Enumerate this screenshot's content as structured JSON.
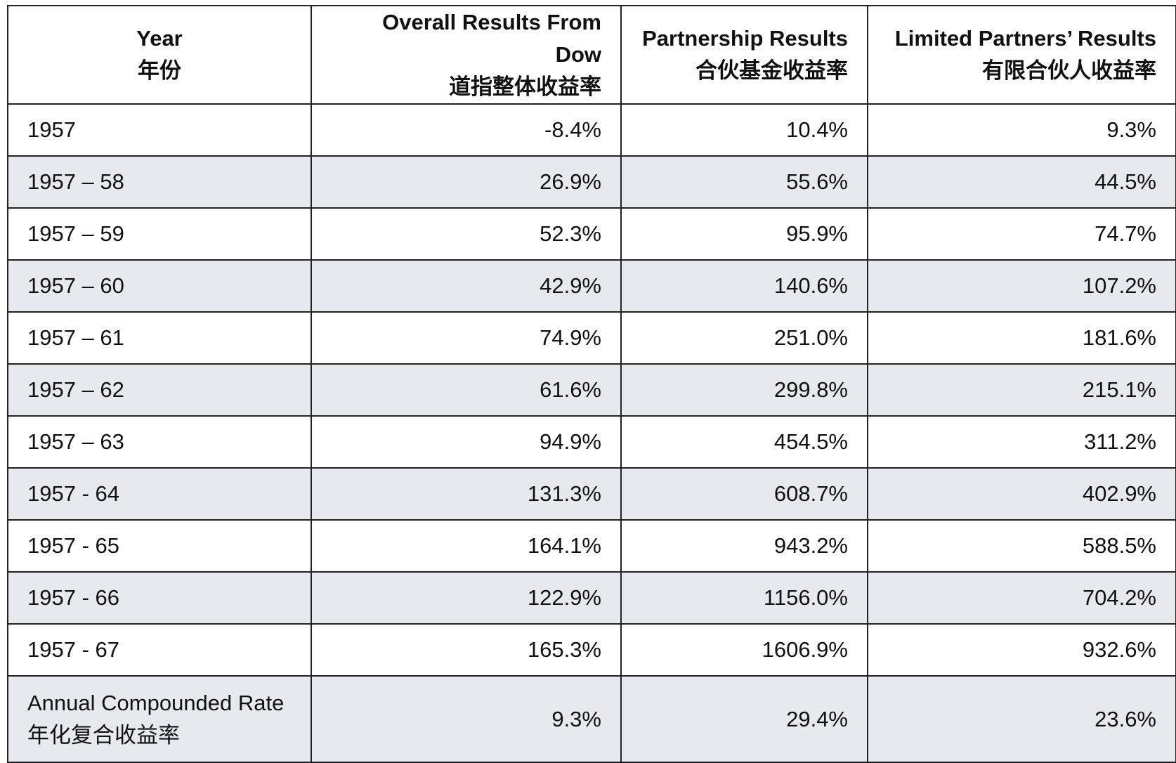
{
  "chart_data": {
    "type": "table",
    "columns": [
      {
        "en": "Year",
        "zh": "年份"
      },
      {
        "en": "Overall Results From Dow",
        "zh": "道指整体收益率"
      },
      {
        "en": "Partnership Results",
        "zh": "合伙基金收益率"
      },
      {
        "en": "Limited Partners’ Results",
        "zh": "有限合伙人收益率"
      }
    ],
    "rows": [
      {
        "period": "1957",
        "dow": "-8.4%",
        "partnership": "10.4%",
        "limited": "9.3%"
      },
      {
        "period": "1957 – 58",
        "dow": "26.9%",
        "partnership": "55.6%",
        "limited": "44.5%"
      },
      {
        "period": "1957 – 59",
        "dow": "52.3%",
        "partnership": "95.9%",
        "limited": "74.7%"
      },
      {
        "period": "1957 – 60",
        "dow": "42.9%",
        "partnership": "140.6%",
        "limited": "107.2%"
      },
      {
        "period": "1957 – 61",
        "dow": "74.9%",
        "partnership": "251.0%",
        "limited": "181.6%"
      },
      {
        "period": "1957 – 62",
        "dow": "61.6%",
        "partnership": "299.8%",
        "limited": "215.1%"
      },
      {
        "period": "1957 – 63",
        "dow": "94.9%",
        "partnership": "454.5%",
        "limited": "311.2%"
      },
      {
        "period": "1957 - 64",
        "dow": "131.3%",
        "partnership": "608.7%",
        "limited": "402.9%"
      },
      {
        "period": "1957 - 65",
        "dow": "164.1%",
        "partnership": "943.2%",
        "limited": "588.5%"
      },
      {
        "period": "1957 - 66",
        "dow": "122.9%",
        "partnership": "1156.0%",
        "limited": "704.2%"
      },
      {
        "period": "1957 - 67",
        "dow": "165.3%",
        "partnership": "1606.9%",
        "limited": "932.6%"
      }
    ],
    "summary": {
      "label_en": "Annual Compounded Rate",
      "label_zh": "年化复合收益率",
      "dow": "9.3%",
      "partnership": "29.4%",
      "limited": "23.6%"
    }
  },
  "colors": {
    "row_shade": "#e6e9ee",
    "border": "#222222",
    "text": "#111111"
  }
}
